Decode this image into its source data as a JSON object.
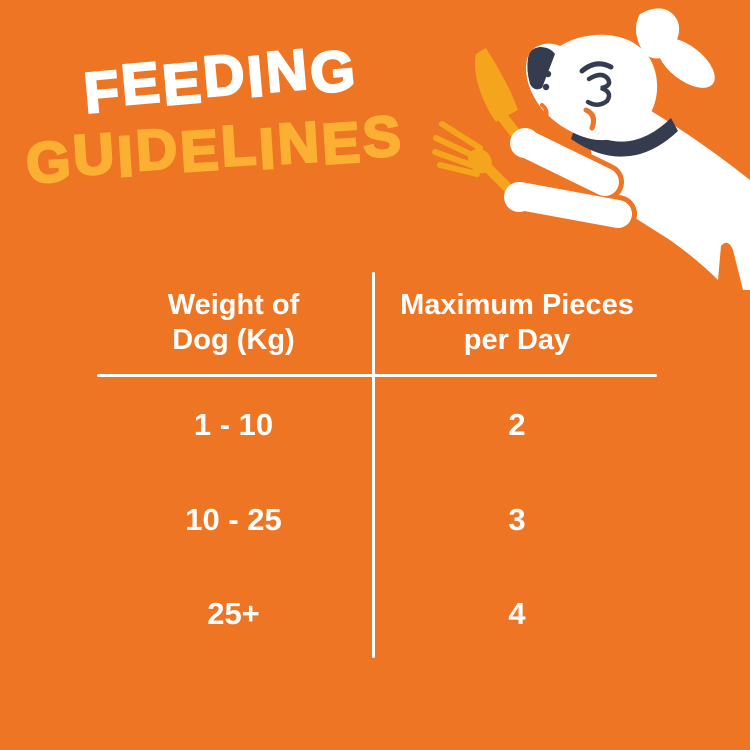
{
  "colors": {
    "background": "#EE7523",
    "accent": "#FBB034",
    "cutlery": "#F4A41D",
    "navy": "#363C50",
    "white": "#FFFFFF",
    "line": "#FFFFFF"
  },
  "title": {
    "line1": "FEEDING",
    "line2": "GUIDELINES"
  },
  "illustration": {
    "name": "dog-with-cutlery"
  },
  "table": {
    "headers": {
      "col1_line1": "Weight of",
      "col1_line2": "Dog (Kg)",
      "col2_line1": "Maximum Pieces",
      "col2_line2": "per Day"
    },
    "rows": [
      {
        "weight": "1 - 10",
        "pieces": "2"
      },
      {
        "weight": "10 - 25",
        "pieces": "3"
      },
      {
        "weight": "25+",
        "pieces": "4"
      }
    ]
  },
  "chart_data": {
    "type": "table",
    "title": "FEEDING GUIDELINES",
    "columns": [
      "Weight of Dog (Kg)",
      "Maximum Pieces per Day"
    ],
    "rows": [
      [
        "1 - 10",
        2
      ],
      [
        "10 - 25",
        3
      ],
      [
        "25+",
        4
      ]
    ]
  }
}
